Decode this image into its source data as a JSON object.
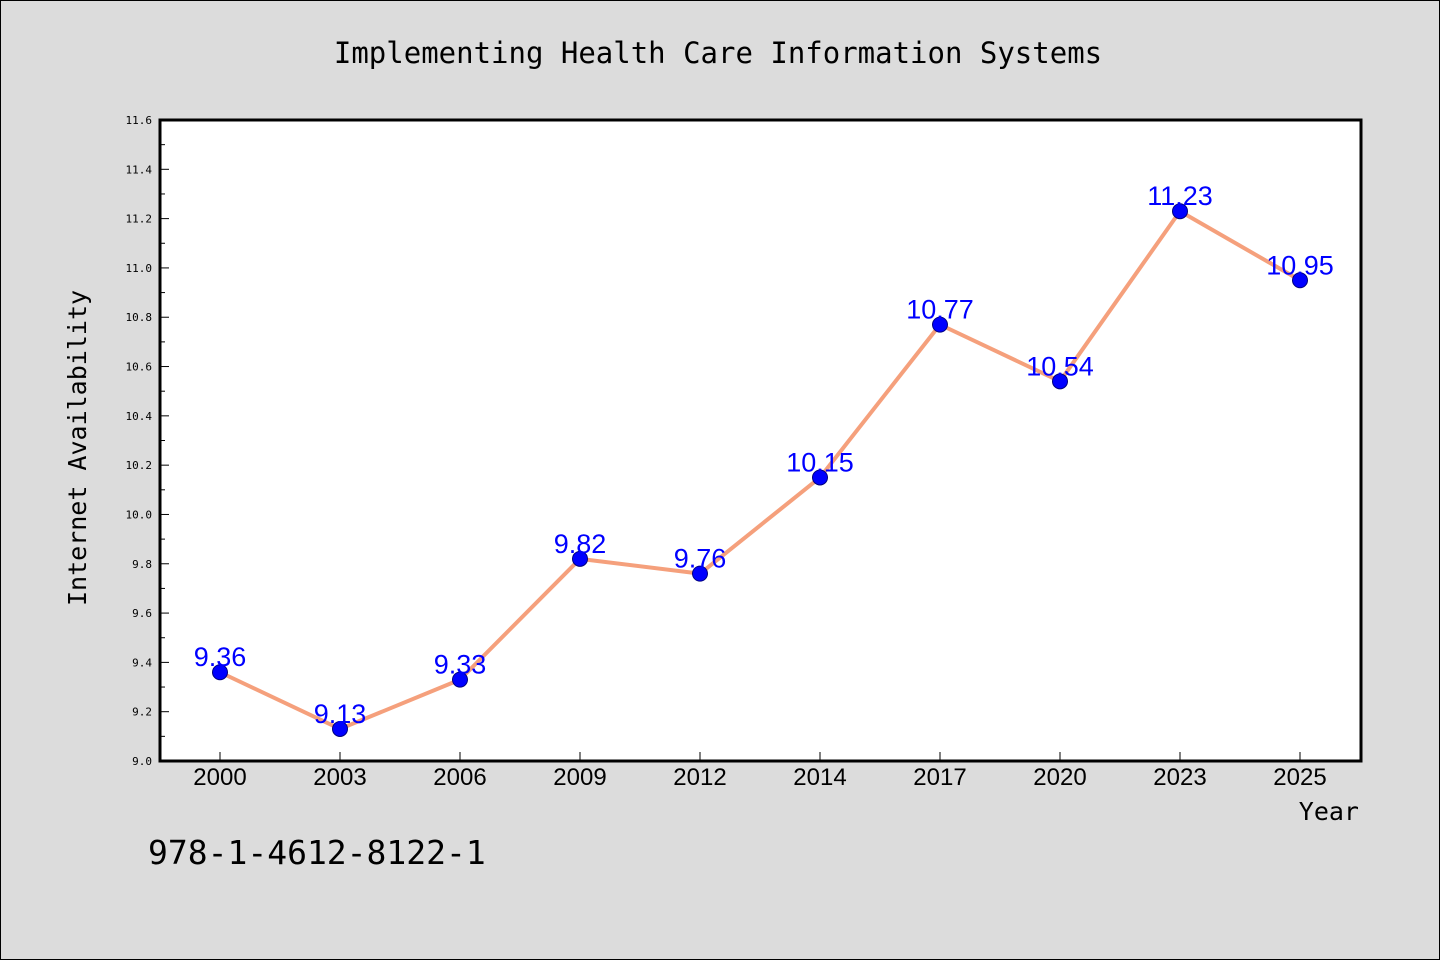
{
  "chart_data": {
    "type": "line",
    "title": "Implementing Health Care Information Systems",
    "xlabel": "Year",
    "ylabel": "Internet Availability",
    "categories": [
      "2000",
      "2003",
      "2006",
      "2009",
      "2012",
      "2014",
      "2017",
      "2020",
      "2023",
      "2025"
    ],
    "series": [
      {
        "values": [
          9.36,
          9.13,
          9.33,
          9.82,
          9.76,
          10.15,
          10.77,
          10.54,
          11.23,
          10.95
        ]
      }
    ],
    "data_labels": [
      "9.36",
      "9.13",
      "9.33",
      "9.82",
      "9.76",
      "10.15",
      "10.77",
      "10.54",
      "11.23",
      "10.95"
    ],
    "ylim": [
      9.0,
      11.6
    ],
    "y_ticks": [
      "9.0",
      "9.2",
      "9.4",
      "9.6",
      "9.8",
      "10.0",
      "10.2",
      "10.4",
      "10.6",
      "10.8",
      "11.0",
      "11.2",
      "11.4",
      "11.6"
    ],
    "y_tick_values": [
      9.0,
      9.2,
      9.4,
      9.6,
      9.8,
      10.0,
      10.2,
      10.4,
      10.6,
      10.8,
      11.0,
      11.2,
      11.4,
      11.6
    ],
    "y_minor_step": 0.1,
    "grid": false,
    "legend": "none",
    "colors": {
      "line": "#f5a07c",
      "marker_fill": "#0000ff",
      "marker_edge": "#000080",
      "data_label": "#0000ff",
      "plot_bg": "#ffffff",
      "page_bg": "#dcdcdc"
    }
  },
  "footer_text": "978-1-4612-8122-1"
}
